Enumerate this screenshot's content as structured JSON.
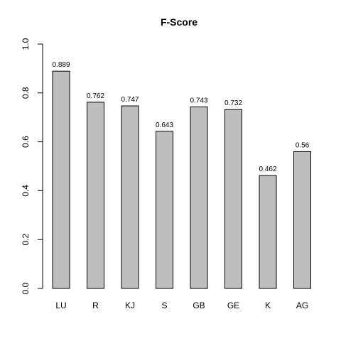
{
  "chart_data": {
    "type": "bar",
    "title": "F-Score",
    "xlabel": "",
    "ylabel": "",
    "categories": [
      "LU",
      "R",
      "KJ",
      "S",
      "GB",
      "GE",
      "K",
      "AG"
    ],
    "values": [
      0.889,
      0.762,
      0.747,
      0.643,
      0.743,
      0.732,
      0.462,
      0.56
    ],
    "value_labels": [
      "0.889",
      "0.762",
      "0.747",
      "0.643",
      "0.743",
      "0.732",
      "0.462",
      "0.56"
    ],
    "ylim": [
      0,
      1
    ],
    "yticks": [
      0.0,
      0.2,
      0.4,
      0.6,
      0.8,
      1.0
    ],
    "ytick_labels": [
      "0.0",
      "0.2",
      "0.4",
      "0.6",
      "0.8",
      "1.0"
    ],
    "grid": false,
    "bar_color": "#bebebe",
    "edge_color": "#000000"
  }
}
